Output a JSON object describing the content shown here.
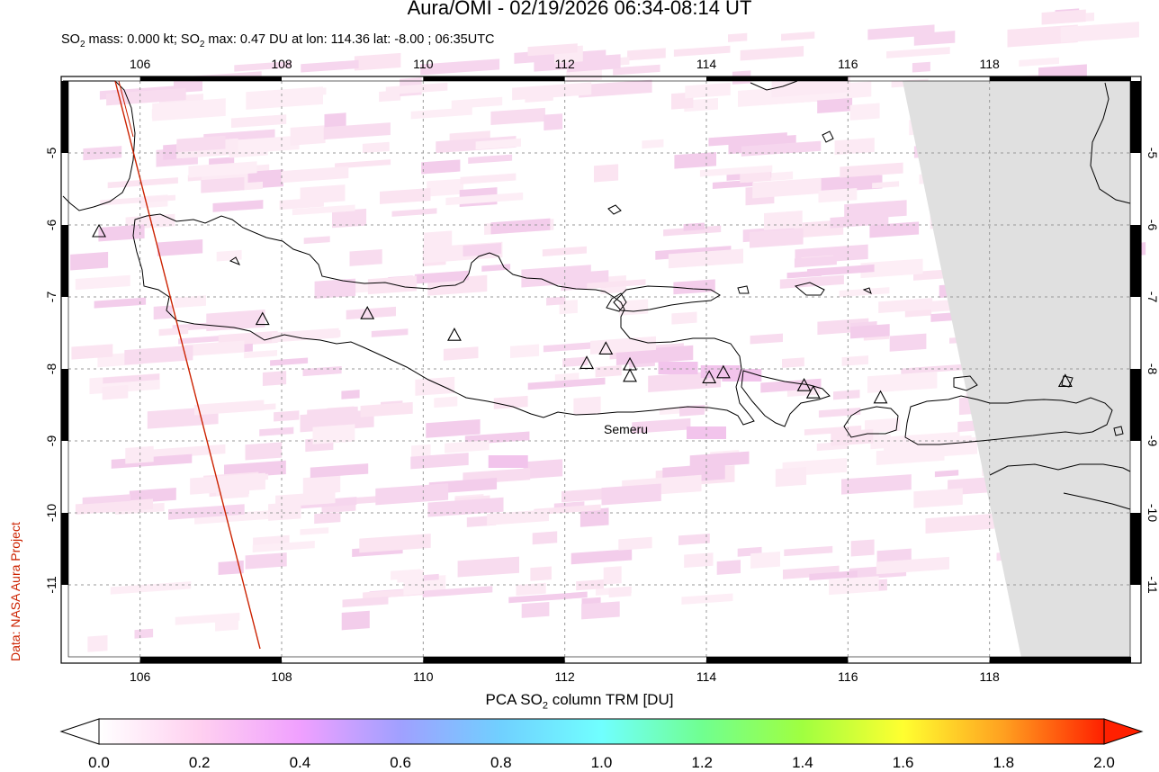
{
  "title": "Aura/OMI - 02/19/2026 06:34-08:14 UT",
  "subtitle": {
    "p1": "SO",
    "p2": "2",
    "p3": " mass: 0.000 kt; SO",
    "p4": "2",
    "p5": " max: 0.47 DU at lon: 114.36 lat: -8.00 ; 06:35UTC"
  },
  "credit": "Data: NASA Aura Project",
  "map": {
    "lon_range": [
      105,
      120
    ],
    "lat_range": [
      -12,
      -4
    ],
    "x_ticks": [
      "106",
      "108",
      "110",
      "112",
      "114",
      "116",
      "118"
    ],
    "y_ticks": [
      "-5",
      "-6",
      "-7",
      "-8",
      "-9",
      "-10",
      "-11"
    ],
    "grid": true,
    "label": "Semeru",
    "colors": {
      "orbit_line": "#cc2200",
      "no_data": "#e0e0e0",
      "coast": "#000000"
    },
    "volcano_icon": "triangle-icon"
  },
  "colorbar": {
    "t1": "PCA SO",
    "t2": "2",
    "t3": " column TRM [DU]",
    "ticks": [
      "0.0",
      "0.2",
      "0.4",
      "0.6",
      "0.8",
      "1.0",
      "1.2",
      "1.4",
      "1.6",
      "1.8",
      "2.0"
    ],
    "range": [
      0,
      2
    ],
    "colors": [
      "#ffffff",
      "#ffd0f0",
      "#f0a0ff",
      "#a0a0ff",
      "#70d0ff",
      "#70ffff",
      "#70ff90",
      "#a0ff40",
      "#ffff30",
      "#ffa020",
      "#ff2000"
    ]
  }
}
